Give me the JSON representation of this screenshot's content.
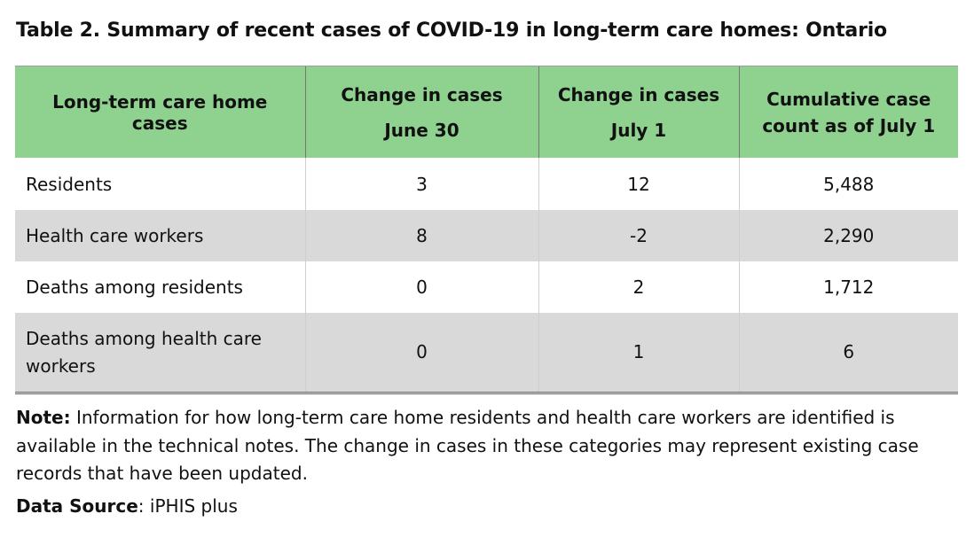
{
  "table": {
    "title": "Table 2. Summary of recent cases of COVID-19 in long-term care homes: Ontario",
    "header": {
      "col1": "Long-term care home cases",
      "col2": [
        "Change in cases",
        "June 30"
      ],
      "col3": [
        "Change in cases",
        "July 1"
      ],
      "col4": [
        "Cumulative case",
        "count as of July 1"
      ]
    },
    "rows": [
      {
        "label": "Residents",
        "june30": "3",
        "july1": "12",
        "cumulative": "5,488"
      },
      {
        "label": "Health care workers",
        "june30": "8",
        "july1": "-2",
        "cumulative": "2,290"
      },
      {
        "label": "Deaths among residents",
        "june30": "0",
        "july1": "2",
        "cumulative": "1,712"
      },
      {
        "label": "Deaths among health care workers",
        "june30": "0",
        "july1": "1",
        "cumulative": "6"
      }
    ]
  },
  "note": {
    "label": "Note:",
    "text": "Information for how long-term care home residents and health care workers are identified is available in the technical notes. The change in cases in these categories may represent existing case records that have been updated."
  },
  "source": {
    "label": "Data Source",
    "separator": ":",
    "value": "iPHIS plus"
  },
  "colors": {
    "header_background": "#8fd18e",
    "shaded_row": "#d9d9d9"
  }
}
